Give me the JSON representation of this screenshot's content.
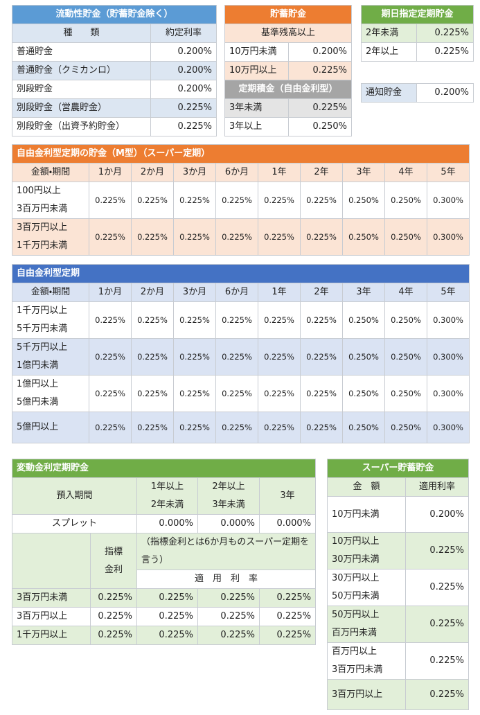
{
  "liquid": {
    "title": "流動性貯金（貯蓄貯金除く）",
    "header": [
      "種　　類",
      "約定利率"
    ],
    "rows": [
      [
        "普通貯金",
        "0.200%"
      ],
      [
        "普通貯金（クミカンロ）",
        "0.200%"
      ],
      [
        "別段貯金",
        "0.200%"
      ],
      [
        "別段貯金（営農貯金）",
        "0.225%"
      ],
      [
        "別段貯金（出資予約貯金）",
        "0.225%"
      ]
    ]
  },
  "savings": {
    "title": "貯蓄貯金",
    "header": "基準残高以上",
    "rows": [
      [
        "10万円未満",
        "0.200%"
      ],
      [
        "10万円以上",
        "0.225%"
      ]
    ]
  },
  "installment": {
    "title": "定期積金（自由金利型）",
    "rows": [
      [
        "3年未満",
        "0.225%"
      ],
      [
        "3年以上",
        "0.250%"
      ]
    ]
  },
  "fixed_date": {
    "title": "期日指定定期貯金",
    "rows": [
      [
        "2年未満",
        "0.225%"
      ],
      [
        "2年以上",
        "0.225%"
      ]
    ]
  },
  "notice": [
    "通知貯金",
    "0.200%"
  ],
  "super_teiki": {
    "title": "自由金利型定期の貯金（M型）（スーパー定期）",
    "header": [
      "金額・期間",
      "1か月",
      "2か月",
      "3か月",
      "6か月",
      "1年",
      "2年",
      "3年",
      "4年",
      "5年"
    ],
    "rows": [
      {
        "amount": [
          "100円以上",
          "3百万円未満"
        ],
        "rates": [
          "0.225%",
          "0.225%",
          "0.225%",
          "0.225%",
          "0.225%",
          "0.225%",
          "0.250%",
          "0.250%",
          "0.300%"
        ]
      },
      {
        "amount": [
          "3百万円以上",
          "1千万円未満"
        ],
        "rates": [
          "0.225%",
          "0.225%",
          "0.225%",
          "0.225%",
          "0.225%",
          "0.225%",
          "0.250%",
          "0.250%",
          "0.300%"
        ]
      }
    ]
  },
  "free_teiki": {
    "title": "自由金利型定期",
    "header": [
      "金額・期間",
      "1か月",
      "2か月",
      "3か月",
      "6か月",
      "1年",
      "2年",
      "3年",
      "4年",
      "5年"
    ],
    "rows": [
      {
        "amount": [
          "1千万円以上",
          "5千万円未満"
        ],
        "rates": [
          "0.225%",
          "0.225%",
          "0.225%",
          "0.225%",
          "0.225%",
          "0.225%",
          "0.250%",
          "0.250%",
          "0.300%"
        ]
      },
      {
        "amount": [
          "5千万円以上",
          "1億円未満"
        ],
        "rates": [
          "0.225%",
          "0.225%",
          "0.225%",
          "0.225%",
          "0.225%",
          "0.225%",
          "0.250%",
          "0.250%",
          "0.300%"
        ]
      },
      {
        "amount": [
          "1億円以上",
          "5億円未満"
        ],
        "rates": [
          "0.225%",
          "0.225%",
          "0.225%",
          "0.225%",
          "0.225%",
          "0.225%",
          "0.250%",
          "0.250%",
          "0.300%"
        ]
      },
      {
        "amount": [
          "5億円以上"
        ],
        "rates": [
          "0.225%",
          "0.225%",
          "0.225%",
          "0.225%",
          "0.225%",
          "0.225%",
          "0.250%",
          "0.250%",
          "0.300%"
        ]
      }
    ]
  },
  "variable": {
    "title": "変動金利定期貯金",
    "period_label": "預入期間",
    "periods": [
      [
        "1年以上",
        "2年未満"
      ],
      [
        "2年以上",
        "3年未満"
      ],
      [
        "3年"
      ]
    ],
    "spread": {
      "label": "スプレット",
      "values": [
        "0.000%",
        "0.000%",
        "0.000%"
      ]
    },
    "index_label": [
      "指標",
      "金利"
    ],
    "note": "（指標金利とは6か月ものスーパー定期を言う）",
    "applied_label": "適　用　利　率",
    "rows": [
      [
        "3百万円未満",
        "0.225%",
        "0.225%",
        "0.225%",
        "0.225%"
      ],
      [
        "3百万円以上",
        "0.225%",
        "0.225%",
        "0.225%",
        "0.225%"
      ],
      [
        "1千万円以上",
        "0.225%",
        "0.225%",
        "0.225%",
        "0.225%"
      ]
    ]
  },
  "super_savings": {
    "title": "スーパー貯蓄貯金",
    "header": [
      "金　額",
      "適用利率"
    ],
    "rows": [
      {
        "amount": [
          "10万円未満"
        ],
        "rate": "0.200%"
      },
      {
        "amount": [
          "10万円以上",
          "30万円未満"
        ],
        "rate": "0.225%"
      },
      {
        "amount": [
          "30万円以上",
          "50万円未満"
        ],
        "rate": "0.225%"
      },
      {
        "amount": [
          "50万円以上",
          "百万円未満"
        ],
        "rate": "0.225%"
      },
      {
        "amount": [
          "百万円以上",
          "3百万円未満"
        ],
        "rate": "0.225%"
      },
      {
        "amount": [
          "3百万円以上"
        ],
        "rate": "0.225%"
      }
    ]
  }
}
